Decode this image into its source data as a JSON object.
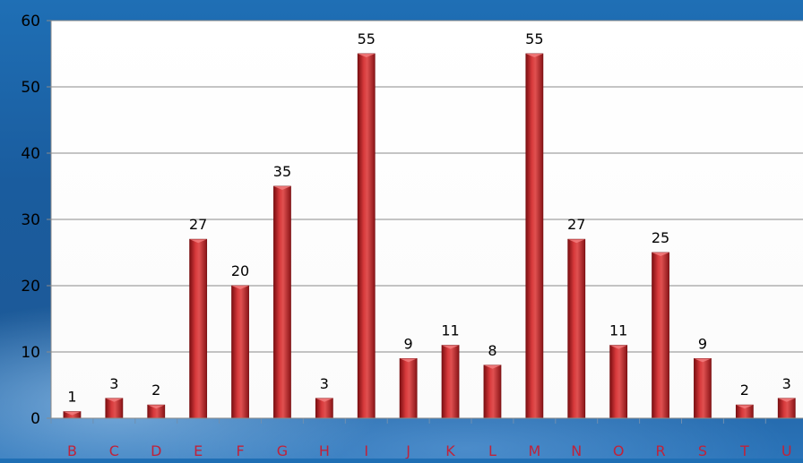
{
  "chart_data": {
    "type": "bar",
    "categories": [
      "B",
      "C",
      "D",
      "E",
      "F",
      "G",
      "H",
      "I",
      "J",
      "K",
      "L",
      "M",
      "N",
      "O",
      "R",
      "S",
      "T",
      "U"
    ],
    "values": [
      1,
      3,
      2,
      27,
      20,
      35,
      3,
      55,
      9,
      11,
      8,
      55,
      27,
      11,
      25,
      9,
      2,
      3
    ],
    "ylim": [
      0,
      60
    ],
    "yticks": [
      0,
      10,
      20,
      30,
      40,
      50,
      60
    ],
    "grid": true,
    "data_labels": true,
    "bar_color": "#c4262a"
  }
}
